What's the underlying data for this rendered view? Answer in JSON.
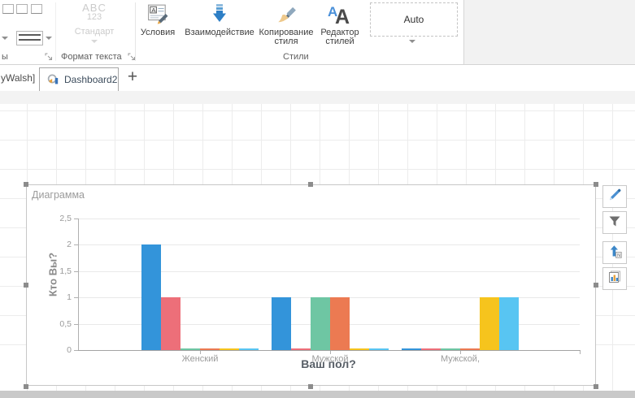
{
  "ribbon": {
    "groups": {
      "borders": {
        "label_partial": "ы"
      },
      "text_format": {
        "label": "Формат текста",
        "standard_button": {
          "line1": "ABC",
          "line2": "123",
          "label": "Стандарт"
        }
      },
      "styles": {
        "label": "Стили",
        "conditions_label": "Условия",
        "interaction_label": "Взаимодействие",
        "copy_style_line1": "Копирование",
        "copy_style_line2": "стиля",
        "style_editor_line1": "Редактор",
        "style_editor_line2": "стилей",
        "style_selector_value": "Auto"
      }
    }
  },
  "tab_bar": {
    "partial_tab": "yWalsh]",
    "active_tab": "Dashboard2",
    "new_tab": "+"
  },
  "side_toolbar": {
    "icons": [
      "edit-pencil-icon",
      "filter-funnel-icon",
      "sort-arrow-icon",
      "chart-settings-icon"
    ],
    "sort_letter": "N"
  },
  "chart_data": {
    "type": "bar",
    "title": "Диаграмма",
    "xlabel": "Ваш пол?",
    "ylabel": "Кто Вы?",
    "categories": [
      "Женский",
      "Мужской",
      "Мужской,"
    ],
    "series": [
      {
        "name": "series-blue",
        "color": "#3394da",
        "values": [
          2,
          1,
          0
        ]
      },
      {
        "name": "series-pink",
        "color": "#ed6f79",
        "values": [
          1,
          0,
          0
        ]
      },
      {
        "name": "series-teal",
        "color": "#6ec6a3",
        "values": [
          0,
          1,
          0
        ]
      },
      {
        "name": "series-orange",
        "color": "#ec7a52",
        "values": [
          0,
          1,
          0
        ]
      },
      {
        "name": "series-yellow",
        "color": "#f6c41d",
        "values": [
          0,
          0,
          1
        ]
      },
      {
        "name": "series-lightblue",
        "color": "#58c5f2",
        "values": [
          0,
          0,
          1
        ]
      }
    ],
    "ylim": [
      0,
      2.5
    ],
    "yticks": [
      "0",
      "0,5",
      "1",
      "1,5",
      "2",
      "2,5"
    ],
    "grid": true,
    "legend": "none"
  }
}
